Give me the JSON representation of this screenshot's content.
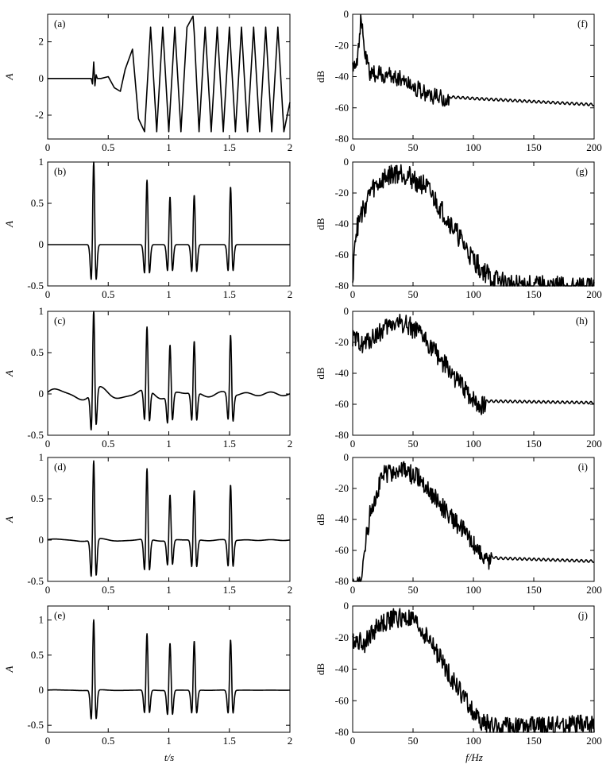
{
  "xlabel_time": "t/s",
  "xlabel_freq": "f/Hz",
  "chart_data": [
    {
      "id": "a",
      "type": "line",
      "domain": "time",
      "tag": "(a)",
      "ylabel": "A",
      "xlim": [
        0,
        2
      ],
      "ylim": [
        -3.3,
        3.5
      ],
      "xticks": [
        0,
        0.5,
        1,
        1.5,
        2
      ],
      "xticklabels": [
        "0",
        "0.5",
        "1",
        "1.5",
        "2"
      ],
      "yticks": [
        -2,
        0,
        2
      ],
      "yticklabels": [
        "-2",
        "0",
        "2"
      ],
      "series": [
        {
          "x": [
            0,
            0.36,
            0.37,
            0.38,
            0.39,
            0.4,
            0.41,
            0.42,
            0.44,
            0.5,
            0.55,
            0.6,
            0.64,
            0.7,
            0.75,
            0.8,
            0.85,
            0.9,
            0.95,
            1.0,
            1.05,
            1.1,
            1.15,
            1.2,
            1.21,
            1.25,
            1.3,
            1.35,
            1.4,
            1.45,
            1.5,
            1.55,
            1.6,
            1.65,
            1.7,
            1.75,
            1.8,
            1.85,
            1.9,
            1.95,
            2.0
          ],
          "y": [
            0,
            0,
            -0.3,
            0.9,
            -0.4,
            0.2,
            0,
            0,
            0,
            0.1,
            -0.5,
            -0.7,
            0.5,
            1.6,
            -2.2,
            -2.9,
            2.8,
            -2.9,
            2.8,
            -2.9,
            2.8,
            -2.9,
            2.8,
            3.4,
            2.5,
            -2.9,
            2.8,
            -2.9,
            2.8,
            -2.9,
            2.8,
            -2.9,
            2.8,
            -2.9,
            2.8,
            -2.9,
            2.8,
            -2.9,
            2.8,
            -2.9,
            -1.3
          ]
        }
      ]
    },
    {
      "id": "b",
      "type": "line",
      "domain": "time",
      "tag": "(b)",
      "ylabel": "A",
      "xlim": [
        0,
        2
      ],
      "ylim": [
        -0.5,
        1
      ],
      "xticks": [
        0,
        0.5,
        1,
        1.5,
        2
      ],
      "xticklabels": [
        "0",
        "0.5",
        "1",
        "1.5",
        "2"
      ],
      "yticks": [
        -0.5,
        0,
        0.5,
        1
      ],
      "yticklabels": [
        "-0.5",
        "0",
        "0.5",
        "1"
      ],
      "spikes": [
        {
          "t": 0.38,
          "amp": 1.0,
          "neg": -0.43
        },
        {
          "t": 0.82,
          "amp": 0.78,
          "neg": -0.35
        },
        {
          "t": 1.01,
          "amp": 0.58,
          "neg": -0.32
        },
        {
          "t": 1.21,
          "amp": 0.6,
          "neg": -0.33
        },
        {
          "t": 1.51,
          "amp": 0.7,
          "neg": -0.32
        }
      ],
      "baseline_ripple": 0
    },
    {
      "id": "c",
      "type": "line",
      "domain": "time",
      "tag": "(c)",
      "ylabel": "A",
      "xlim": [
        0,
        2
      ],
      "ylim": [
        -0.5,
        1
      ],
      "xticks": [
        0,
        0.5,
        1,
        1.5,
        2
      ],
      "xticklabels": [
        "0",
        "0.5",
        "1",
        "1.5",
        "2"
      ],
      "yticks": [
        -0.5,
        0,
        0.5,
        1
      ],
      "yticklabels": [
        "-0.5",
        "0",
        "0.5",
        "1"
      ],
      "spikes": [
        {
          "t": 0.38,
          "amp": 0.97,
          "neg": -0.45
        },
        {
          "t": 0.82,
          "amp": 0.75,
          "neg": -0.38
        },
        {
          "t": 1.01,
          "amp": 0.6,
          "neg": -0.33
        },
        {
          "t": 1.21,
          "amp": 0.62,
          "neg": -0.34
        },
        {
          "t": 1.51,
          "amp": 0.72,
          "neg": -0.32
        }
      ],
      "baseline_ripple": 0.07
    },
    {
      "id": "d",
      "type": "line",
      "domain": "time",
      "tag": "(d)",
      "ylabel": "A",
      "xlim": [
        0,
        2
      ],
      "ylim": [
        -0.5,
        1
      ],
      "xticks": [
        0,
        0.5,
        1,
        1.5,
        2
      ],
      "xticklabels": [
        "0",
        "0.5",
        "1",
        "1.5",
        "2"
      ],
      "yticks": [
        -0.5,
        0,
        0.5,
        1
      ],
      "yticklabels": [
        "-0.5",
        "0",
        "0.5",
        "1"
      ],
      "spikes": [
        {
          "t": 0.38,
          "amp": 0.95,
          "neg": -0.45
        },
        {
          "t": 0.82,
          "amp": 0.85,
          "neg": -0.38
        },
        {
          "t": 1.01,
          "amp": 0.55,
          "neg": -0.3
        },
        {
          "t": 1.21,
          "amp": 0.6,
          "neg": -0.33
        },
        {
          "t": 1.51,
          "amp": 0.67,
          "neg": -0.32
        }
      ],
      "baseline_ripple": 0.015
    },
    {
      "id": "e",
      "type": "line",
      "domain": "time",
      "tag": "(e)",
      "ylabel": "A",
      "xlim": [
        0,
        2
      ],
      "ylim": [
        -0.6,
        1.2
      ],
      "xticks": [
        0,
        0.5,
        1,
        1.5,
        2
      ],
      "xticklabels": [
        "0",
        "0.5",
        "1",
        "1.5",
        "2"
      ],
      "yticks": [
        -0.5,
        0,
        0.5,
        1
      ],
      "yticklabels": [
        "-0.5",
        "0",
        "0.5",
        "1"
      ],
      "spikes": [
        {
          "t": 0.38,
          "amp": 1.0,
          "neg": -0.42
        },
        {
          "t": 0.82,
          "amp": 0.8,
          "neg": -0.33
        },
        {
          "t": 1.01,
          "amp": 0.67,
          "neg": -0.35
        },
        {
          "t": 1.21,
          "amp": 0.7,
          "neg": -0.33
        },
        {
          "t": 1.51,
          "amp": 0.72,
          "neg": -0.33
        }
      ],
      "baseline_ripple": 0.005
    },
    {
      "id": "f",
      "type": "line",
      "domain": "freq",
      "tag": "(f)",
      "ylabel": "dB",
      "xlim": [
        0,
        200
      ],
      "ylim": [
        -80,
        0
      ],
      "xticks": [
        0,
        50,
        100,
        150,
        200
      ],
      "xticklabels": [
        "0",
        "50",
        "100",
        "150",
        "200"
      ],
      "yticks": [
        -80,
        -60,
        -40,
        -20,
        0
      ],
      "yticklabels": [
        "-80",
        "-60",
        "-40",
        "-20",
        "0"
      ],
      "envelope": [
        [
          0,
          -30
        ],
        [
          4,
          -25
        ],
        [
          7,
          0
        ],
        [
          10,
          -22
        ],
        [
          14,
          -35
        ],
        [
          40,
          -38
        ],
        [
          60,
          -48
        ],
        [
          80,
          -53
        ],
        [
          100,
          -54
        ],
        [
          150,
          -56
        ],
        [
          200,
          -58
        ]
      ],
      "noise_until": 80,
      "noise_amp": 8
    },
    {
      "id": "g",
      "type": "line",
      "domain": "freq",
      "tag": "(g)",
      "ylabel": "dB",
      "xlim": [
        0,
        200
      ],
      "ylim": [
        -80,
        0
      ],
      "xticks": [
        0,
        50,
        100,
        150,
        200
      ],
      "xticklabels": [
        "0",
        "50",
        "100",
        "150",
        "200"
      ],
      "yticks": [
        -80,
        -60,
        -40,
        -20,
        0
      ],
      "yticklabels": [
        "-80",
        "-60",
        "-40",
        "-20",
        "0"
      ],
      "envelope": [
        [
          0,
          -80
        ],
        [
          1,
          -50
        ],
        [
          5,
          -35
        ],
        [
          15,
          -15
        ],
        [
          30,
          -5
        ],
        [
          40,
          -3
        ],
        [
          60,
          -12
        ],
        [
          80,
          -35
        ],
        [
          100,
          -60
        ],
        [
          115,
          -72
        ],
        [
          130,
          -76
        ],
        [
          200,
          -78
        ]
      ],
      "noise_until": 200,
      "noise_amp": 10
    },
    {
      "id": "h",
      "type": "line",
      "domain": "freq",
      "tag": "(h)",
      "ylabel": "dB",
      "xlim": [
        0,
        200
      ],
      "ylim": [
        -80,
        0
      ],
      "xticks": [
        0,
        50,
        100,
        150,
        200
      ],
      "xticklabels": [
        "0",
        "50",
        "100",
        "150",
        "200"
      ],
      "yticks": [
        -80,
        -60,
        -40,
        -20,
        0
      ],
      "yticklabels": [
        "-80",
        "-60",
        "-40",
        "-20",
        "0"
      ],
      "envelope": [
        [
          0,
          -15
        ],
        [
          10,
          -18
        ],
        [
          20,
          -12
        ],
        [
          35,
          -4
        ],
        [
          45,
          -5
        ],
        [
          60,
          -15
        ],
        [
          75,
          -30
        ],
        [
          90,
          -45
        ],
        [
          105,
          -58
        ],
        [
          115,
          -58
        ],
        [
          200,
          -59
        ]
      ],
      "noise_until": 110,
      "noise_amp": 9
    },
    {
      "id": "i",
      "type": "line",
      "domain": "freq",
      "tag": "(i)",
      "ylabel": "dB",
      "xlim": [
        0,
        200
      ],
      "ylim": [
        -80,
        0
      ],
      "xticks": [
        0,
        50,
        100,
        150,
        200
      ],
      "xticklabels": [
        "0",
        "50",
        "100",
        "150",
        "200"
      ],
      "yticks": [
        -80,
        -60,
        -40,
        -20,
        0
      ],
      "yticklabels": [
        "-80",
        "-60",
        "-40",
        "-20",
        "0"
      ],
      "envelope": [
        [
          7,
          -80
        ],
        [
          10,
          -55
        ],
        [
          15,
          -30
        ],
        [
          25,
          -8
        ],
        [
          40,
          -5
        ],
        [
          55,
          -10
        ],
        [
          70,
          -25
        ],
        [
          85,
          -38
        ],
        [
          100,
          -52
        ],
        [
          110,
          -63
        ],
        [
          120,
          -65
        ],
        [
          200,
          -67
        ]
      ],
      "noise_until": 115,
      "noise_amp": 9
    },
    {
      "id": "j",
      "type": "line",
      "domain": "freq",
      "tag": "(j)",
      "ylabel": "dB",
      "xlim": [
        0,
        200
      ],
      "ylim": [
        -80,
        0
      ],
      "xticks": [
        0,
        50,
        100,
        150,
        200
      ],
      "xticklabels": [
        "0",
        "50",
        "100",
        "150",
        "200"
      ],
      "yticks": [
        -80,
        -60,
        -40,
        -20,
        0
      ],
      "yticklabels": [
        "-80",
        "-60",
        "-40",
        "-20",
        "0"
      ],
      "envelope": [
        [
          0,
          -18
        ],
        [
          10,
          -20
        ],
        [
          20,
          -10
        ],
        [
          35,
          -4
        ],
        [
          50,
          -6
        ],
        [
          65,
          -20
        ],
        [
          80,
          -40
        ],
        [
          95,
          -58
        ],
        [
          105,
          -70
        ],
        [
          120,
          -74
        ],
        [
          200,
          -72
        ]
      ],
      "noise_until": 200,
      "noise_amp": 9
    }
  ]
}
